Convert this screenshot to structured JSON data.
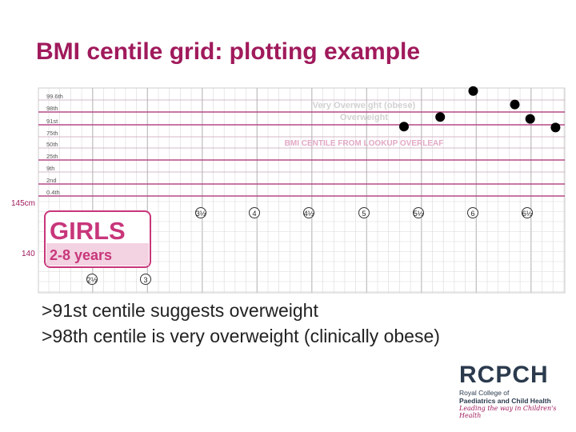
{
  "title": "BMI centile grid: plotting example",
  "chart_data": {
    "type": "scatter",
    "centile_labels": [
      "99.6th",
      "98th",
      "91st",
      "75th",
      "50th",
      "25th",
      "9th",
      "2nd",
      "0.4th"
    ],
    "zone_labels": {
      "very_overweight": "Very Overweight (obese)",
      "overweight": "Overweight",
      "lookup": "BMI CENTILE FROM LOOKUP OVERLEAF"
    },
    "height_labels": [
      "145cm",
      "140"
    ],
    "age_markers_upper": [
      "3½",
      "4",
      "4½",
      "5",
      "5½",
      "6",
      "6½"
    ],
    "age_markers_lower": [
      "2½",
      "3"
    ],
    "x": [
      5.52,
      5.99,
      6.42,
      6.96,
      7.16,
      7.49
    ],
    "y": [
      -0.3,
      0.2,
      1.55,
      0.85,
      0.1,
      -0.35
    ],
    "y_note": "",
    "panel": {
      "girls": "GIRLS",
      "ages": "2-8 years"
    }
  },
  "bullets": [
    ">91st centile suggests overweight",
    ">98th centile is very overweight (clinically obese)"
  ],
  "logo": {
    "word": "RCPCH",
    "line1": "Royal College of",
    "line2": "Paediatrics and Child Health",
    "tagline": "Leading the way in Children's Health"
  },
  "colors": {
    "title": "#a01a5c",
    "pink": "#c8367a",
    "centile_line": "#b54a86",
    "grid": "#d9d9d9"
  }
}
